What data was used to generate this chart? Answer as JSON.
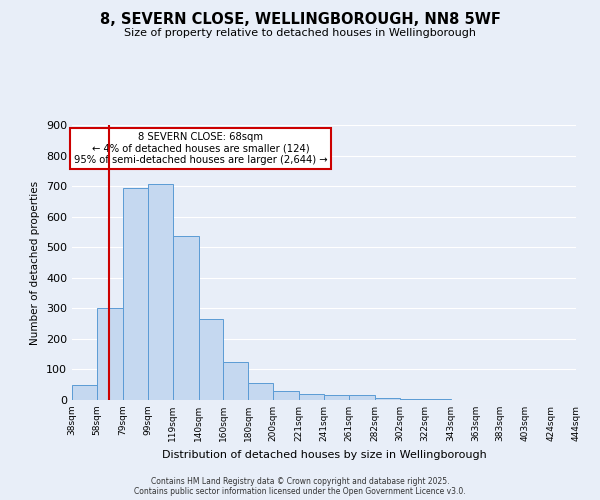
{
  "title": "8, SEVERN CLOSE, WELLINGBOROUGH, NN8 5WF",
  "subtitle": "Size of property relative to detached houses in Wellingborough",
  "xlabel": "Distribution of detached houses by size in Wellingborough",
  "ylabel": "Number of detached properties",
  "bar_values": [
    48,
    300,
    693,
    706,
    538,
    265,
    124,
    55,
    28,
    20,
    15,
    18,
    5,
    3,
    2,
    0,
    0,
    0,
    0,
    0
  ],
  "bin_edges": [
    38,
    58,
    79,
    99,
    119,
    140,
    160,
    180,
    200,
    221,
    241,
    261,
    282,
    302,
    322,
    343,
    363,
    383,
    403,
    424,
    444
  ],
  "tick_labels": [
    "38sqm",
    "58sqm",
    "79sqm",
    "99sqm",
    "119sqm",
    "140sqm",
    "160sqm",
    "180sqm",
    "200sqm",
    "221sqm",
    "241sqm",
    "261sqm",
    "282sqm",
    "302sqm",
    "322sqm",
    "343sqm",
    "363sqm",
    "383sqm",
    "403sqm",
    "424sqm",
    "444sqm"
  ],
  "bar_color": "#c5d8f0",
  "bar_edge_color": "#5b9bd5",
  "vline_x": 68,
  "vline_color": "#cc0000",
  "annotation_text": "8 SEVERN CLOSE: 68sqm\n← 4% of detached houses are smaller (124)\n95% of semi-detached houses are larger (2,644) →",
  "annotation_box_color": "#ffffff",
  "annotation_box_edge": "#cc0000",
  "ylim": [
    0,
    900
  ],
  "yticks": [
    0,
    100,
    200,
    300,
    400,
    500,
    600,
    700,
    800,
    900
  ],
  "background_color": "#e8eef8",
  "grid_color": "#ffffff",
  "footer1": "Contains HM Land Registry data © Crown copyright and database right 2025.",
  "footer2": "Contains public sector information licensed under the Open Government Licence v3.0."
}
